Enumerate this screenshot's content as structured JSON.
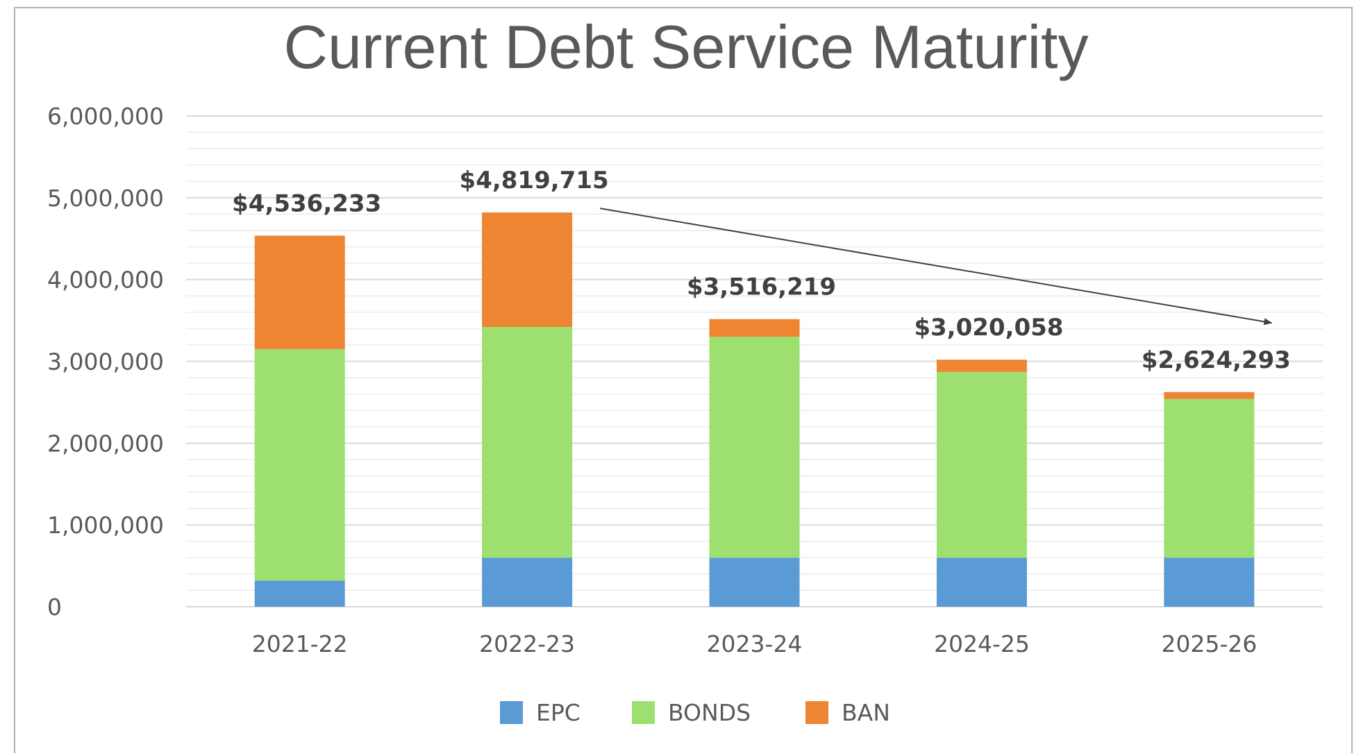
{
  "chart_data": {
    "type": "bar",
    "stacked": true,
    "title": "Current Debt Service Maturity",
    "xlabel": "",
    "ylabel": "",
    "categories": [
      "2021-22",
      "2022-23",
      "2023-24",
      "2024-25",
      "2025-26"
    ],
    "series": [
      {
        "name": "EPC",
        "color": "#5b9bd5",
        "values": [
          320000,
          600000,
          600000,
          600000,
          600000
        ]
      },
      {
        "name": "BONDS",
        "color": "#9de070",
        "values": [
          2830000,
          2820000,
          2700000,
          2270000,
          1940000
        ]
      },
      {
        "name": "BAN",
        "color": "#ed8533",
        "values": [
          1386233,
          1399715,
          216219,
          150058,
          84293
        ]
      }
    ],
    "totals": [
      4536233,
      4819715,
      3516219,
      3020058,
      2624293
    ],
    "total_labels": [
      "$4,536,233",
      "$4,819,715",
      "$3,516,219",
      "$3,020,058",
      "$2,624,293"
    ],
    "ylim": [
      0,
      6000000
    ],
    "yticks": [
      0,
      1000000,
      2000000,
      3000000,
      4000000,
      5000000,
      6000000
    ],
    "ytick_labels": [
      "0",
      "1,000,000",
      "2,000,000",
      "3,000,000",
      "4,000,000",
      "5,000,000",
      "6,000,000"
    ],
    "grid": true,
    "legend_position": "bottom",
    "annotation": {
      "type": "arrow",
      "from": {
        "category": "2022-23",
        "value": 4870000
      },
      "to": {
        "category": "2025-26",
        "value": 3470000
      }
    },
    "colors": {
      "gridline": "#d9d9d9",
      "text": "#595959",
      "total_label": "#404040",
      "arrow": "#404040"
    }
  }
}
